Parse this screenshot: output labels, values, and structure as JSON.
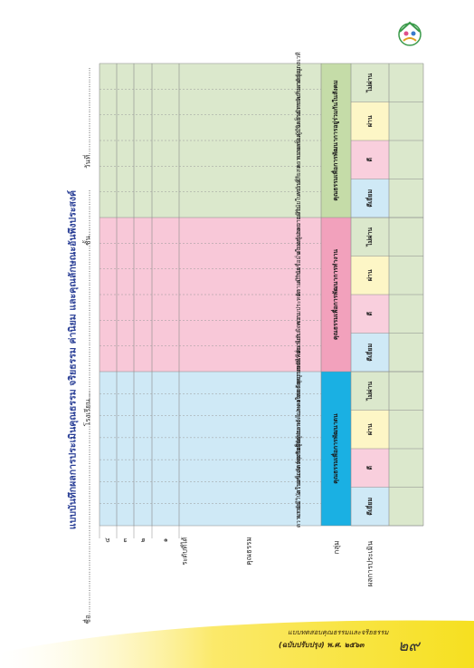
{
  "form": {
    "title": "แบบบันทึกผลการประเมินคุณธรรม จริยธรรม ค่านิยม และคุณลักษณะอันพึงประสงค์",
    "name_label": "ชื่อ.................................................................................................",
    "school_label": "โรงเรียน...........................................................................",
    "grade_label": "ชั้น....................",
    "date_label": "วันที่......................................"
  },
  "row_labels": {
    "level_4": "๔",
    "level_3": "๓",
    "level_2": "๒",
    "level_1": "๑",
    "level_header": "ระดับที่ได้",
    "virtue_header": "คุณธรรม",
    "group_header": "กลุ่ม",
    "result_header": "ผลการประเมิน"
  },
  "groups": [
    {
      "name": "คุณธรรมเพื่อการพัฒนาตน",
      "virtues": [
        "ความขยัน",
        "ความมีวินัยในตนเอง",
        "ความซื่อสัตย์สุจริต",
        "ความรับผิดชอบ",
        "ความเป็นผู้ ฉลาด-ไม่หลงใหล",
        "ความรู้จักประหยัดและ ความรักความพอเพียง",
        "ความกตัญญูกตเวที"
      ],
      "results": [
        "ดีเยี่ยม",
        "ดี",
        "ผ่าน",
        "ไม่ผ่าน"
      ]
    },
    {
      "name": "คุณธรรมเพื่อการพัฒนาการทำงาน",
      "virtues": [
        "ความขยันหมั่นเพียร",
        "ความรับผิดชอบ",
        "ความประหยัด",
        "ความมีวินัย",
        "ความเชื่อมั่นในตนเอง",
        "ความรู้ประมาณตน"
      ],
      "results": [
        "ดีเยี่ยม",
        "ดี",
        "ผ่าน",
        "ไม่ผ่าน"
      ]
    },
    {
      "name": "คุณธรรมเพื่อการพัฒนาการอยู่ร่วมกันในสังคม",
      "virtues": [
        "ความมีวินัยในหน้าที่",
        "ความเสียสละ",
        "ความอดทน",
        "ความเป็นผู้มีจิตสาธารณะ",
        "ความเป็นมิตรกับสิ่งแวดล้อม",
        "ความกตัญญูกตเวที"
      ],
      "results": [
        "ดีเยี่ยม",
        "ดี",
        "ผ่าน",
        "ไม่ผ่าน"
      ]
    }
  ],
  "footer": {
    "line1": "แบบทดสอบคุณธรรมและจริยธรรม",
    "line2": "(ฉบับปรับปรุง) พ.ศ. ๒๕๖๓",
    "page_number": "๒๙"
  },
  "colors": {
    "group1": "#cfe9f6",
    "group1_header": "#1ab0e3",
    "group2": "#f8c8d8",
    "group2_header": "#f2a1bc",
    "group3": "#dbe8cc",
    "group3_header": "#c5dca8",
    "result_blue": "#cfe9f6",
    "result_pink": "#f9cfdd",
    "result_yellow": "#fdf6c6",
    "result_green": "#dbe8cc",
    "footer": "#f6e020"
  }
}
